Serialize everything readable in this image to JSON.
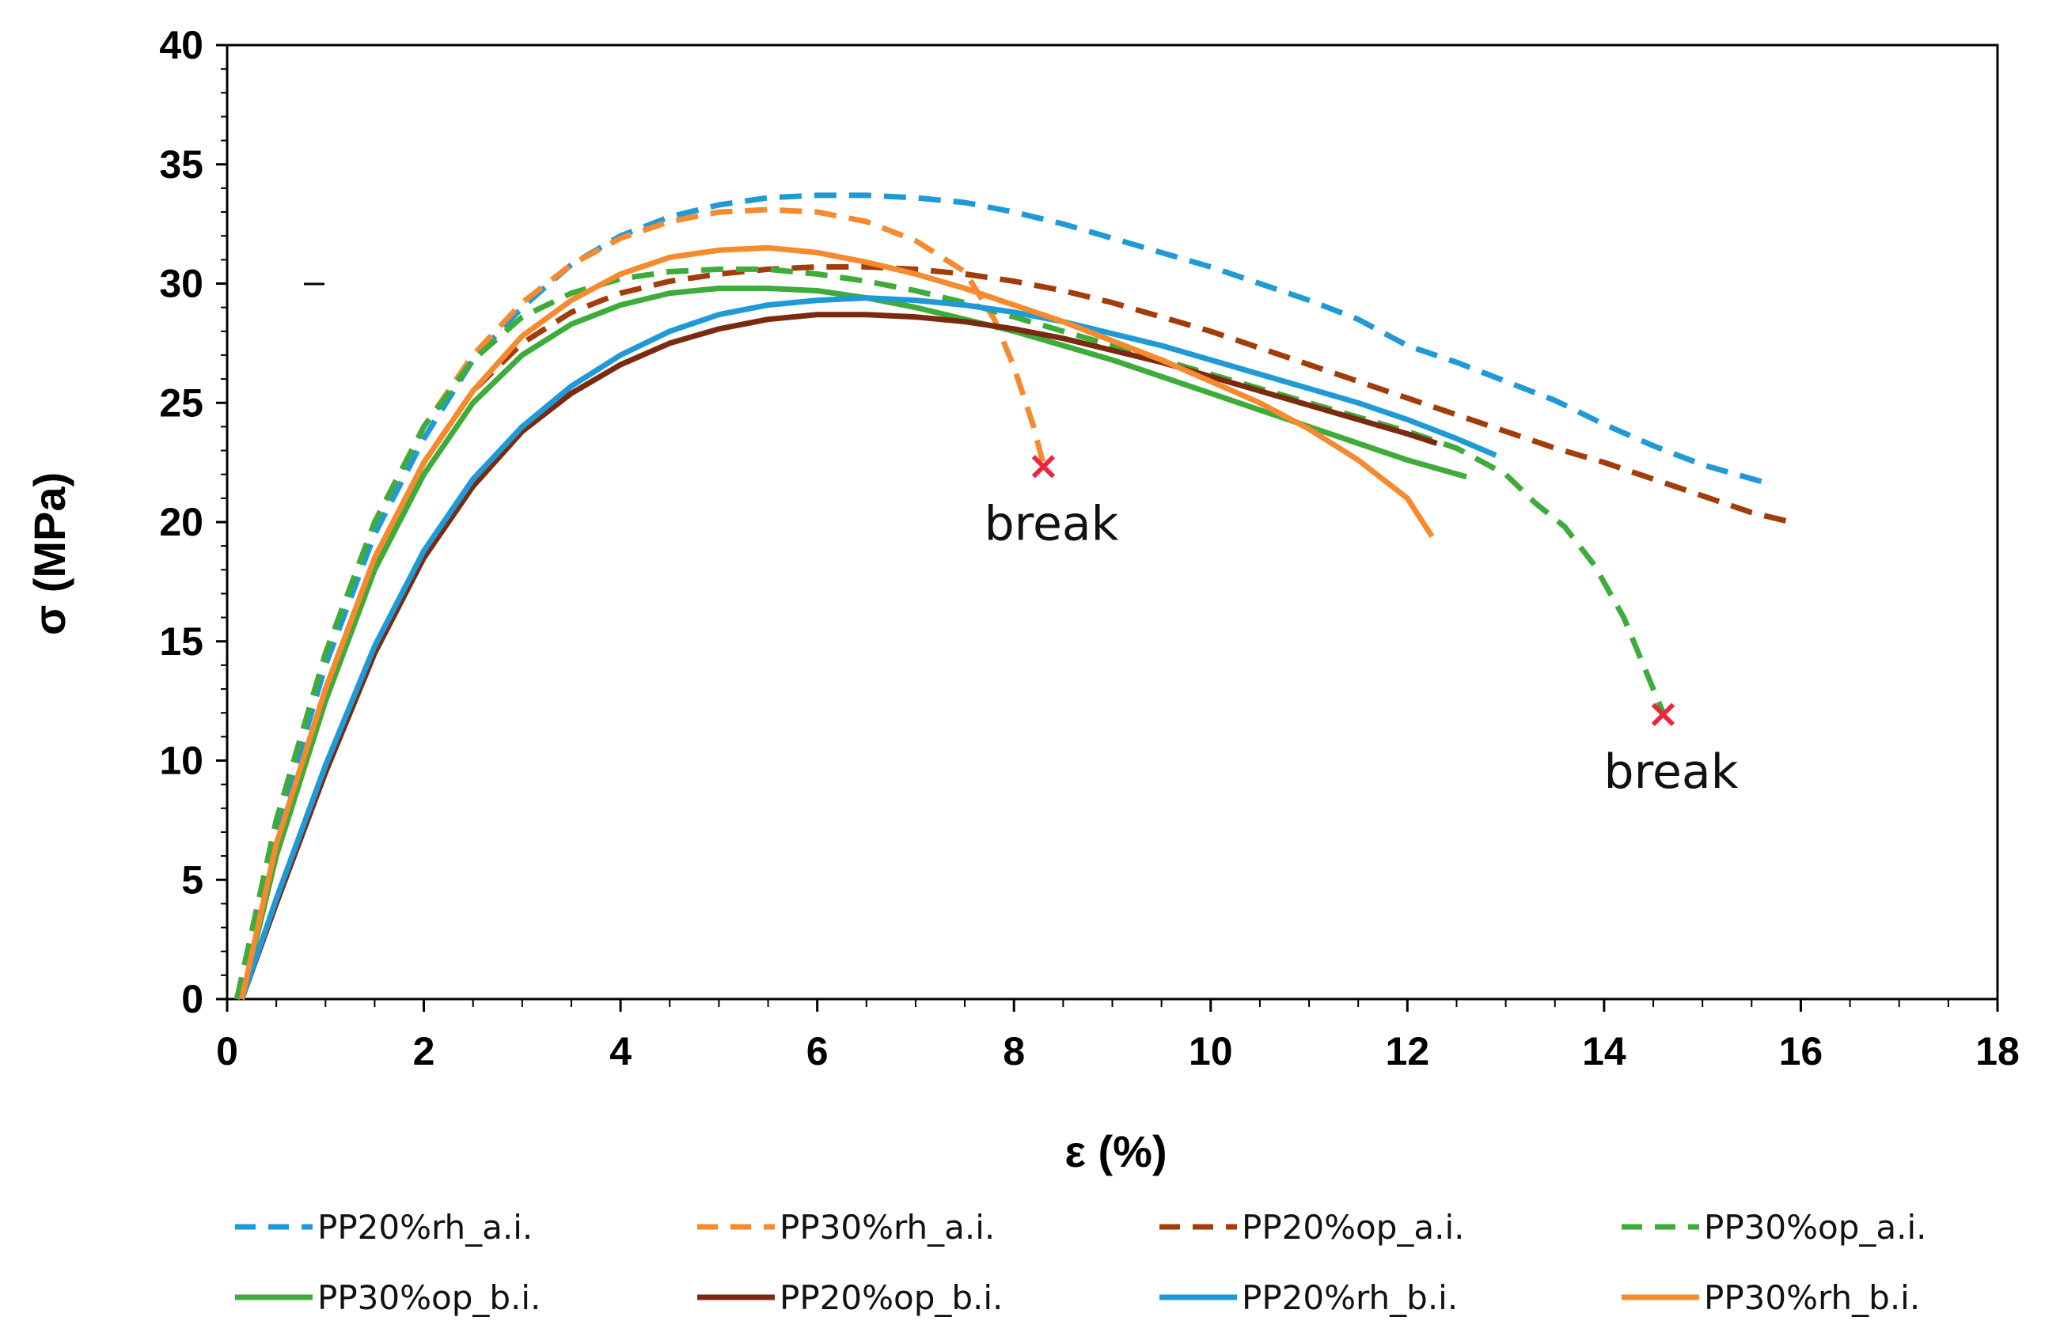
{
  "chart_data": {
    "type": "line",
    "title": "",
    "xlabel": "ε (%)",
    "ylabel": "σ (MPa)",
    "xlim": [
      0,
      18
    ],
    "ylim": [
      0,
      40
    ],
    "xticks": [
      0,
      2,
      4,
      6,
      8,
      10,
      12,
      14,
      16,
      18
    ],
    "yticks": [
      0,
      5,
      10,
      15,
      20,
      25,
      30,
      35,
      40
    ],
    "legend_position": "bottom",
    "series": [
      {
        "name": "PP20%rh_a.i.",
        "color": "#1f9ad6",
        "dash": "dashed",
        "x": [
          0.1,
          0.5,
          1,
          1.5,
          2,
          2.5,
          3,
          3.5,
          4,
          4.5,
          5,
          5.5,
          6,
          6.5,
          7,
          7.5,
          8,
          8.5,
          9,
          9.5,
          10,
          10.5,
          11,
          11.5,
          12,
          12.5,
          13,
          13.5,
          14,
          14.5,
          15,
          15.6
        ],
        "y": [
          0,
          7,
          14,
          19.5,
          23.5,
          26.8,
          29,
          30.8,
          32,
          32.8,
          33.3,
          33.6,
          33.7,
          33.7,
          33.6,
          33.4,
          33,
          32.5,
          31.9,
          31.3,
          30.7,
          30,
          29.3,
          28.5,
          27.4,
          26.7,
          25.9,
          25.1,
          24.1,
          23.2,
          22.4,
          21.7
        ]
      },
      {
        "name": "PP30%rh_a.i.",
        "color": "#f58a2e",
        "dash": "dashed",
        "x": [
          0.1,
          0.5,
          1,
          1.5,
          2,
          2.5,
          3,
          3.5,
          4,
          4.5,
          5,
          5.5,
          6,
          6.5,
          7,
          7.5,
          7.8,
          8.0,
          8.2,
          8.3
        ],
        "y": [
          0,
          7.5,
          14.5,
          20,
          24,
          27,
          29.2,
          30.8,
          31.9,
          32.6,
          33.0,
          33.1,
          33.0,
          32.6,
          31.8,
          30.5,
          28.5,
          26.5,
          24,
          22.4
        ]
      },
      {
        "name": "PP20%op_a.i.",
        "color": "#a23c0a",
        "dash": "dashed",
        "x": [
          0.1,
          0.5,
          1,
          1.5,
          2,
          2.5,
          3,
          3.5,
          4,
          4.5,
          5,
          5.5,
          6,
          6.5,
          7,
          7.5,
          8,
          8.5,
          9,
          9.5,
          10,
          10.5,
          11,
          11.5,
          12,
          12.5,
          13,
          13.5,
          14,
          14.5,
          15,
          15.5,
          15.9
        ],
        "y": [
          0,
          6.5,
          13,
          18.5,
          22.5,
          25.5,
          27.5,
          28.8,
          29.6,
          30.1,
          30.4,
          30.6,
          30.7,
          30.7,
          30.6,
          30.4,
          30.1,
          29.7,
          29.2,
          28.6,
          28.0,
          27.3,
          26.6,
          25.9,
          25.2,
          24.5,
          23.8,
          23.1,
          22.5,
          21.8,
          21.1,
          20.4,
          20.0
        ]
      },
      {
        "name": "PP30%op_a.i.",
        "color": "#3dac3a",
        "dash": "dashed",
        "x": [
          0.1,
          0.5,
          1,
          1.5,
          2,
          2.5,
          3,
          3.5,
          4,
          4.5,
          5,
          5.5,
          6,
          6.5,
          7,
          7.5,
          8,
          8.5,
          9,
          9.5,
          10,
          10.5,
          11,
          11.5,
          12,
          12.5,
          13,
          13.3,
          13.6,
          13.9,
          14.2,
          14.4,
          14.55,
          14.6
        ],
        "y": [
          0,
          7.5,
          14.5,
          20,
          24,
          26.8,
          28.6,
          29.6,
          30.2,
          30.5,
          30.6,
          30.6,
          30.4,
          30.1,
          29.7,
          29.2,
          28.6,
          28.0,
          27.4,
          26.8,
          26.2,
          25.6,
          25.0,
          24.4,
          23.8,
          23.1,
          22.0,
          20.8,
          19.8,
          18.2,
          16.0,
          14.0,
          12.5,
          12.0
        ]
      },
      {
        "name": "PP30%op_b.i.",
        "color": "#3dac3a",
        "dash": "solid",
        "x": [
          0.15,
          0.5,
          1,
          1.5,
          2,
          2.5,
          3,
          3.5,
          4,
          4.5,
          5,
          5.5,
          6,
          6.5,
          7,
          7.5,
          8,
          8.5,
          9,
          9.5,
          10,
          10.5,
          11,
          11.5,
          12,
          12.6
        ],
        "y": [
          0,
          6,
          12.5,
          18,
          22,
          25,
          27,
          28.3,
          29.1,
          29.6,
          29.8,
          29.8,
          29.7,
          29.4,
          29.0,
          28.5,
          28.0,
          27.4,
          26.8,
          26.1,
          25.4,
          24.7,
          24.0,
          23.3,
          22.6,
          21.9
        ]
      },
      {
        "name": "PP20%op_b.i.",
        "color": "#7b2a10",
        "dash": "solid",
        "x": [
          0.15,
          0.5,
          1,
          1.5,
          2,
          2.5,
          3,
          3.5,
          4,
          4.5,
          5,
          5.5,
          6,
          6.5,
          7,
          7.5,
          8,
          8.5,
          9,
          9.5,
          10,
          10.5,
          11,
          11.5,
          12,
          12.3
        ],
        "y": [
          0,
          4,
          9.5,
          14.5,
          18.5,
          21.5,
          23.8,
          25.4,
          26.6,
          27.5,
          28.1,
          28.5,
          28.7,
          28.7,
          28.6,
          28.4,
          28.1,
          27.7,
          27.2,
          26.7,
          26.1,
          25.5,
          24.9,
          24.3,
          23.7,
          23.3
        ]
      },
      {
        "name": "PP20%rh_b.i.",
        "color": "#1f9ad6",
        "dash": "solid",
        "x": [
          0.15,
          0.5,
          1,
          1.5,
          2,
          2.5,
          3,
          3.5,
          4,
          4.5,
          5,
          5.5,
          6,
          6.5,
          7,
          7.5,
          8,
          8.5,
          9,
          9.5,
          10,
          10.5,
          11,
          11.5,
          12,
          12.5,
          12.9
        ],
        "y": [
          0,
          4.2,
          9.8,
          14.8,
          18.8,
          21.8,
          24.0,
          25.7,
          27.0,
          28.0,
          28.7,
          29.1,
          29.3,
          29.4,
          29.3,
          29.1,
          28.8,
          28.4,
          27.9,
          27.4,
          26.8,
          26.2,
          25.6,
          25.0,
          24.3,
          23.5,
          22.8
        ]
      },
      {
        "name": "PP30%rh_b.i.",
        "color": "#f58a2e",
        "dash": "solid",
        "x": [
          0.15,
          0.5,
          1,
          1.5,
          2,
          2.5,
          3,
          3.5,
          4,
          4.5,
          5,
          5.5,
          6,
          6.5,
          7,
          7.5,
          8,
          8.5,
          9,
          9.5,
          10,
          10.5,
          11,
          11.5,
          12,
          12.25
        ],
        "y": [
          0,
          6.5,
          13,
          18.5,
          22.5,
          25.5,
          27.8,
          29.3,
          30.4,
          31.1,
          31.4,
          31.5,
          31.3,
          30.9,
          30.4,
          29.8,
          29.1,
          28.4,
          27.6,
          26.8,
          25.9,
          25.0,
          23.9,
          22.6,
          21.0,
          19.4
        ]
      }
    ],
    "annotations": [
      {
        "text": "break",
        "marker": "×",
        "x": 8.3,
        "y": 22.4,
        "color": "#e8283c"
      },
      {
        "text": "break",
        "marker": "×",
        "x": 14.6,
        "y": 12.0,
        "color": "#e8283c"
      }
    ]
  }
}
